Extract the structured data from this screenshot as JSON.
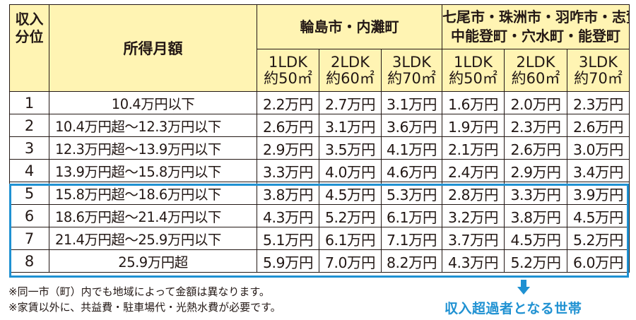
{
  "table": {
    "header": {
      "rank": "収入\n分位",
      "income": "所得月額",
      "area1": "輪島市・内灘町",
      "area2_line1": "七尾市・珠洲市・羽咋市・志賀町",
      "area2_line2": "中能登町・穴水町・能登町",
      "types": [
        {
          "layout": "1LDK",
          "size": "約50㎡"
        },
        {
          "layout": "2LDK",
          "size": "約60㎡"
        },
        {
          "layout": "3LDK",
          "size": "約70㎡"
        },
        {
          "layout": "1LDK",
          "size": "約50㎡"
        },
        {
          "layout": "2LDK",
          "size": "約60㎡"
        },
        {
          "layout": "3LDK",
          "size": "約70㎡"
        }
      ]
    },
    "rows": [
      {
        "rank": "1",
        "income": "10.4万円以下",
        "rents": [
          "2.2万円",
          "2.7万円",
          "3.1万円",
          "1.6万円",
          "2.0万円",
          "2.3万円"
        ]
      },
      {
        "rank": "2",
        "income": "10.4万円超～12.3万円以下",
        "rents": [
          "2.6万円",
          "3.1万円",
          "3.6万円",
          "1.9万円",
          "2.3万円",
          "2.6万円"
        ]
      },
      {
        "rank": "3",
        "income": "12.3万円超～13.9万円以下",
        "rents": [
          "2.9万円",
          "3.5万円",
          "4.1万円",
          "2.1万円",
          "2.6万円",
          "3.0万円"
        ]
      },
      {
        "rank": "4",
        "income": "13.9万円超～15.8万円以下",
        "rents": [
          "3.3万円",
          "4.0万円",
          "4.6万円",
          "2.4万円",
          "2.9万円",
          "3.4万円"
        ]
      },
      {
        "rank": "5",
        "income": "15.8万円超～18.6万円以下",
        "rents": [
          "3.8万円",
          "4.5万円",
          "5.3万円",
          "2.8万円",
          "3.3万円",
          "3.9万円"
        ]
      },
      {
        "rank": "6",
        "income": "18.6万円超～21.4万円以下",
        "rents": [
          "4.3万円",
          "5.2万円",
          "6.1万円",
          "3.2万円",
          "3.8万円",
          "4.5万円"
        ]
      },
      {
        "rank": "7",
        "income": "21.4万円超～25.9万円以下",
        "rents": [
          "5.1万円",
          "6.1万円",
          "7.1万円",
          "3.7万円",
          "4.5万円",
          "5.2万円"
        ]
      },
      {
        "rank": "8",
        "income": "25.9万円超",
        "rents": [
          "5.9万円",
          "7.0万円",
          "8.2万円",
          "4.3万円",
          "5.2万円",
          "6.0万円"
        ]
      }
    ]
  },
  "notes": [
    "※同一市（町）内でも地域によって金額は異なります。",
    "※家賃以外に、共益費・駐車場代・光熱水費が必要です。"
  ],
  "callout": "収入超過者となる世帯",
  "colors": {
    "header_bg": "#fff4b3",
    "highlight": "#1f91d2"
  },
  "icons": {
    "arrow": "down-arrow-icon"
  }
}
